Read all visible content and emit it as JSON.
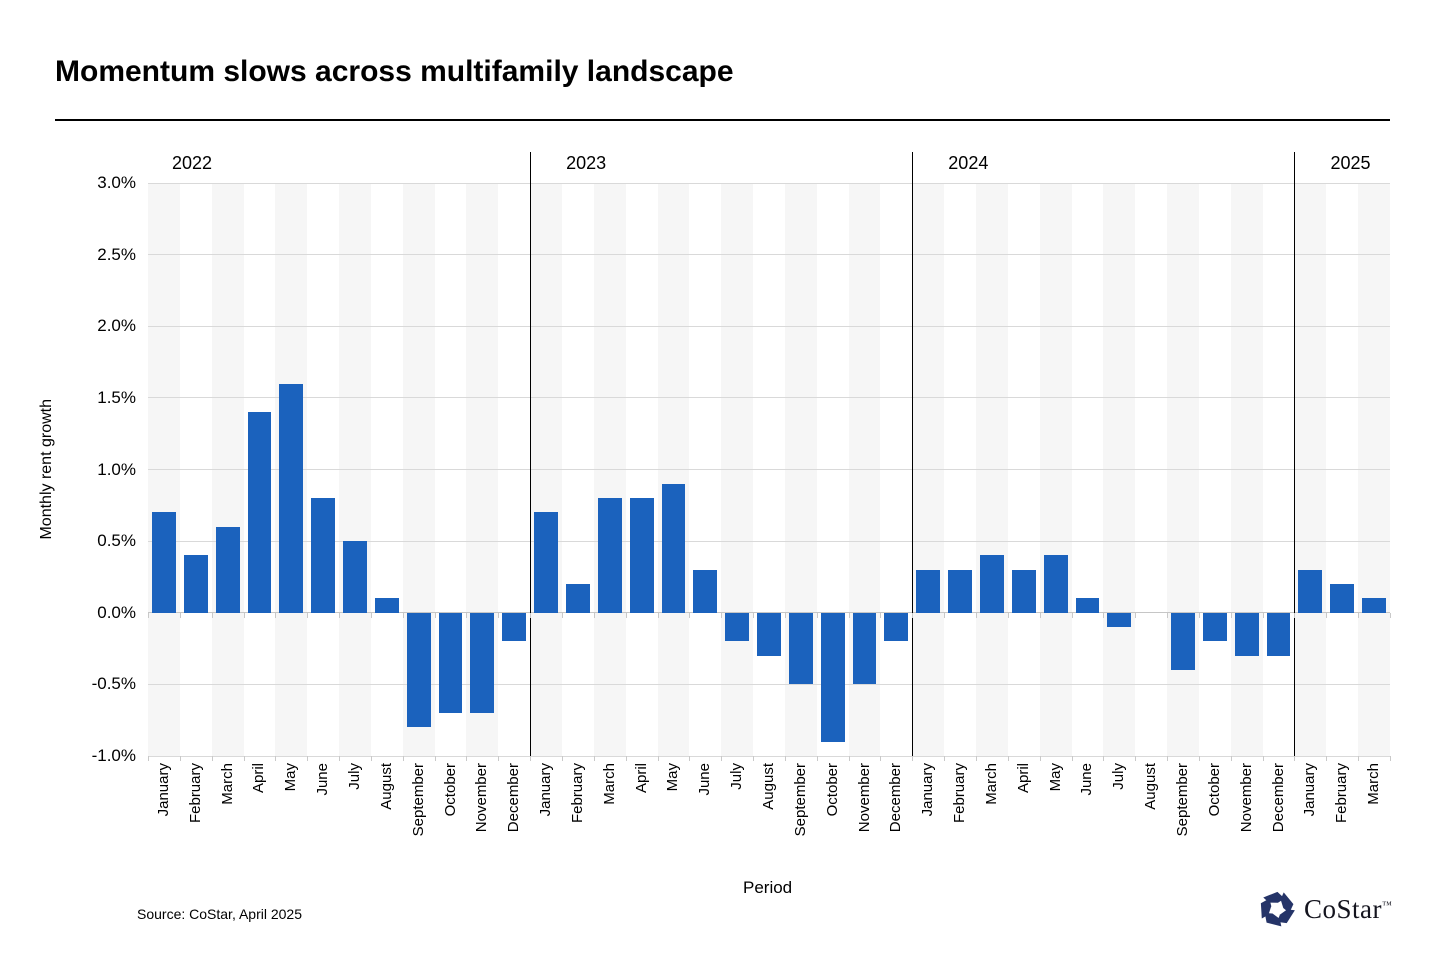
{
  "header": {
    "title": "Momentum slows across multifamily landscape"
  },
  "chart_data": {
    "type": "bar",
    "title": "Momentum slows across multifamily landscape",
    "xlabel": "Period",
    "ylabel": "Monthly rent growth",
    "ylim": [
      -1.0,
      3.0
    ],
    "ytick_values": [
      3.0,
      2.5,
      2.0,
      1.5,
      1.0,
      0.5,
      0.0,
      -0.5,
      -1.0
    ],
    "ytick_labels": [
      "3.0%",
      "2.5%",
      "2.0%",
      "1.5%",
      "1.0%",
      "0.5%",
      "0.0%",
      "-0.5%",
      "-1.0%"
    ],
    "grid": "horizontal",
    "legend": "none",
    "bar_color": "#1b62bd",
    "band_colors": [
      "#f6f6f6",
      "#ffffff"
    ],
    "groups": [
      {
        "year": "2022",
        "months": [
          "January",
          "February",
          "March",
          "April",
          "May",
          "June",
          "July",
          "August",
          "September",
          "October",
          "November",
          "December"
        ],
        "values": [
          0.7,
          0.4,
          0.6,
          1.4,
          1.6,
          0.8,
          0.5,
          0.1,
          -0.8,
          -0.7,
          -0.7,
          -0.2
        ]
      },
      {
        "year": "2023",
        "months": [
          "January",
          "February",
          "March",
          "April",
          "May",
          "June",
          "July",
          "August",
          "September",
          "October",
          "November",
          "December"
        ],
        "values": [
          0.7,
          0.2,
          0.8,
          0.8,
          0.9,
          0.3,
          -0.2,
          -0.3,
          -0.5,
          -0.9,
          -0.5,
          -0.2
        ]
      },
      {
        "year": "2024",
        "months": [
          "January",
          "February",
          "March",
          "April",
          "May",
          "June",
          "July",
          "August",
          "September",
          "October",
          "November",
          "December"
        ],
        "values": [
          0.3,
          0.3,
          0.4,
          0.3,
          0.4,
          0.1,
          -0.1,
          0.0,
          -0.4,
          -0.2,
          -0.3,
          -0.3
        ]
      },
      {
        "year": "2025",
        "months": [
          "January",
          "February",
          "March"
        ],
        "values": [
          0.3,
          0.2,
          0.1
        ]
      }
    ]
  },
  "footer": {
    "source": "Source: CoStar, April 2025",
    "logo": {
      "text": "CoStar",
      "tm": "™",
      "icon": "costar-pinwheel-icon",
      "icon_color": "#253468"
    }
  }
}
